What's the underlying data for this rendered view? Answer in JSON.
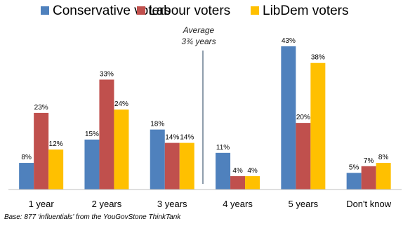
{
  "chart_data": {
    "type": "bar",
    "title": "",
    "xlabel": "",
    "ylabel": "",
    "ylim": [
      0,
      45
    ],
    "grid": false,
    "legend_position": "top",
    "categories": [
      "1 year",
      "2 years",
      "3 years",
      "4 years",
      "5 years",
      "Don't know"
    ],
    "series": [
      {
        "name": "Conservative voters",
        "color": "#4f81bd",
        "values": [
          8,
          15,
          18,
          11,
          43,
          5
        ],
        "labels": [
          "8%",
          "15%",
          "18%",
          "11%",
          "43%",
          "5%"
        ]
      },
      {
        "name": "Labour voters",
        "color": "#c0504d",
        "values": [
          23,
          33,
          14,
          4,
          20,
          7
        ],
        "labels": [
          "23%",
          "33%",
          "14%",
          "4%",
          "20%",
          "7%"
        ]
      },
      {
        "name": "LibDem voters",
        "color": "#ffc000",
        "values": [
          12,
          24,
          14,
          4,
          38,
          8
        ],
        "labels": [
          "12%",
          "24%",
          "14%",
          "4%",
          "38%",
          "8%"
        ]
      }
    ],
    "annotation": {
      "line1": "Average",
      "line2": "3¾ years"
    }
  },
  "footnote": "Base: 877 ‘influentials’ from the YouGovStone ThinkTank"
}
